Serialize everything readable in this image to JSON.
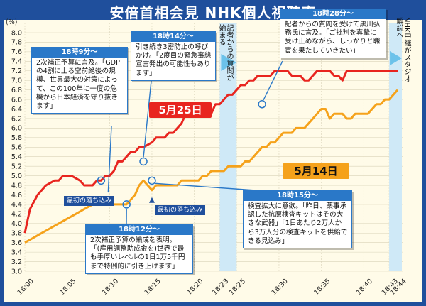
{
  "title": "安倍首相会見 NHK個人視聴率",
  "chart_data": {
    "type": "line",
    "ylabel": "(%)",
    "ylim": [
      3.0,
      8.0
    ],
    "yticks": [
      "3.0",
      "3.2",
      "3.4",
      "3.6",
      "3.8",
      "4.0",
      "4.2",
      "4.4",
      "4.6",
      "4.8",
      "5.0",
      "5.2",
      "5.4",
      "5.6",
      "5.8",
      "6.0",
      "6.2",
      "6.4",
      "6.6",
      "6.8",
      "7.0",
      "7.2",
      "7.4",
      "7.6",
      "7.8",
      "8.0"
    ],
    "xticks": [
      "18:00",
      "18:05",
      "18:10",
      "18:15",
      "18:20",
      "18:23",
      "18:25",
      "18:30",
      "18:35",
      "18:40",
      "18:43",
      "18:44"
    ],
    "xtick_minutes": [
      0,
      5,
      10,
      15,
      20,
      23,
      25,
      30,
      35,
      40,
      43,
      44
    ],
    "grid": true,
    "series": [
      {
        "name": "5月25日",
        "color": "#e8251f",
        "x": [
          0,
          0.6,
          1.5,
          2.5,
          3.5,
          4,
          4.5,
          5.5,
          6.5,
          7,
          7.5,
          8,
          8.5,
          9,
          9.5,
          10,
          10.5,
          11,
          11.5,
          12,
          12.5,
          13,
          13.5,
          14,
          15,
          15.5,
          16,
          16.5,
          17,
          17.5,
          18,
          18.5,
          19,
          19.5,
          20,
          20.5,
          21,
          21.5,
          22,
          22.5,
          23,
          23.5,
          24,
          24.5,
          25,
          25.5,
          26,
          26.5,
          27,
          27.5,
          28,
          28.5,
          29,
          29.5,
          30,
          30.5,
          31,
          31.5,
          32,
          32.5,
          33,
          33.5,
          34,
          34.5,
          35,
          35.5,
          36,
          36.5,
          37,
          37.5,
          38,
          38.5,
          39,
          39.5,
          40,
          40.5,
          41,
          41.5,
          42,
          42.5,
          43,
          43.5,
          44
        ],
        "y": [
          3.8,
          4.3,
          4.6,
          4.8,
          4.9,
          4.9,
          5.0,
          5.0,
          4.9,
          4.8,
          4.8,
          4.8,
          4.9,
          4.9,
          5.0,
          5.0,
          5.1,
          5.3,
          5.3,
          5.4,
          5.5,
          5.5,
          5.6,
          5.6,
          5.7,
          5.8,
          5.8,
          5.8,
          5.9,
          5.9,
          6.0,
          6.1,
          6.3,
          6.3,
          6.3,
          6.4,
          6.4,
          6.5,
          6.3,
          6.5,
          6.5,
          6.6,
          6.7,
          6.7,
          6.8,
          6.9,
          6.9,
          7.0,
          7.0,
          7.1,
          7.1,
          7.1,
          7.1,
          7.2,
          7.2,
          7.2,
          7.2,
          7.1,
          7.1,
          7.1,
          7.0,
          7.0,
          7.1,
          7.2,
          7.2,
          7.2,
          7.2,
          7.1,
          7.1,
          7.0,
          7.2,
          7.2,
          7.2,
          7.2,
          7.2,
          7.2,
          7.2,
          7.2,
          7.2,
          7.2,
          7.2,
          7.2,
          7.2
        ]
      },
      {
        "name": "5月14日",
        "color": "#f5a21b",
        "x": [
          0,
          1,
          2,
          3,
          4,
          5,
          6,
          7,
          8,
          9,
          10,
          10.5,
          11,
          11.5,
          12,
          12.5,
          13,
          13.5,
          14,
          14.5,
          15,
          15.5,
          16,
          16.5,
          17,
          17.5,
          18,
          18.5,
          19,
          19.5,
          20,
          20.5,
          21,
          21.5,
          22,
          22.5,
          23,
          23.5,
          24,
          24.5,
          25,
          25.5,
          26,
          26.5,
          27,
          27.5,
          28,
          28.5,
          29,
          29.5,
          30,
          30.5,
          31,
          31.5,
          32,
          32.5,
          33,
          33.5,
          34,
          34.5,
          35,
          35.5,
          36,
          36.5,
          37,
          37.5,
          38,
          38.5,
          39,
          39.5,
          40,
          40.5,
          41,
          41.5,
          42,
          42.5,
          43,
          43.5,
          44
        ],
        "y": [
          3.6,
          3.7,
          3.8,
          3.9,
          4.0,
          4.1,
          4.2,
          4.3,
          4.4,
          4.4,
          4.4,
          4.4,
          4.4,
          4.4,
          4.4,
          4.5,
          4.6,
          4.8,
          4.9,
          4.8,
          4.7,
          4.8,
          4.8,
          4.8,
          4.8,
          4.8,
          4.8,
          4.9,
          4.9,
          4.9,
          4.9,
          4.9,
          5.0,
          5.0,
          5.1,
          5.1,
          5.1,
          5.1,
          5.2,
          5.2,
          5.2,
          5.2,
          5.3,
          5.3,
          5.4,
          5.5,
          5.6,
          5.6,
          5.7,
          5.7,
          5.8,
          5.9,
          5.9,
          5.9,
          6.0,
          6.0,
          6.0,
          6.1,
          6.2,
          6.3,
          6.4,
          6.4,
          6.2,
          6.3,
          6.3,
          6.3,
          6.2,
          6.2,
          6.3,
          6.3,
          6.3,
          6.3,
          6.4,
          6.5,
          6.5,
          6.6,
          6.6,
          6.7,
          6.8
        ]
      }
    ],
    "series_labels": [
      "5月25日",
      "5月14日"
    ],
    "dip_labels": [
      "最初の落ち込み",
      "最初の落ち込み"
    ]
  },
  "notes": [
    {
      "header": "18時9分～",
      "body": "2次補正予算に言及。「GDPの4割に上る空前絶後の規模、世界最大の対策によって、この100年に一度の危機から日本経済を守り抜きます」"
    },
    {
      "header": "18時14分～",
      "body": "引き続き3密防止の呼びかけ。「2度目の緊急事態宣言発出の可能性もあります」"
    },
    {
      "header": "18時28分～",
      "body": "記者からの質問を受けて黒川弘務氏に言及。「ご批判を真摯に受け止めながら、しっかりと職責を果たしていきたい」"
    },
    {
      "header": "18時12分～",
      "body": "2次補正予算の編成を表明。「(雇用調整助成金を)世界で最も手厚いレベルの1日1万5千円まで特例的に引き上げます」"
    },
    {
      "header": "18時15分～",
      "body": "検査拡大に意欲。「昨日、薬事承認した抗原検査キットはその大きな武器」「1日あたり2万人から3万人分の検査キットを供給できる見込み」"
    }
  ],
  "vertical_notes": [
    "記者からの質問が始まる",
    "NHK中継がスタジオ解説へ"
  ]
}
